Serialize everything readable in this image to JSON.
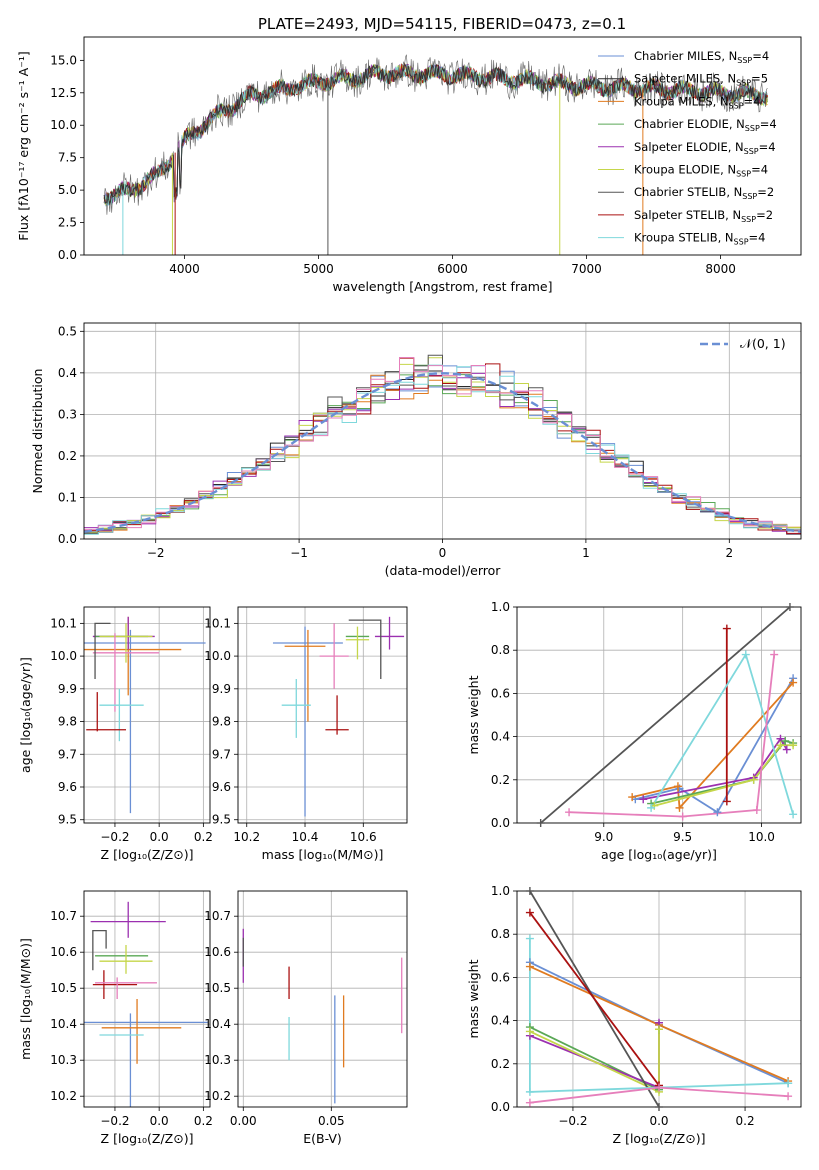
{
  "figure_title": "PLATE=2493, MJD=54115, FIBERID=0473, z=0.1",
  "colors": {
    "chabrier_miles": "#6a8fd4",
    "salpeter_miles": "#2a2a2a",
    "kroupa_miles": "#e07b20",
    "chabrier_elodie": "#5aa856",
    "salpeter_elodie": "#9b30b0",
    "kroupa_elodie": "#c5d64a",
    "chabrier_stelib": "#555555",
    "salpeter_stelib": "#aa1111",
    "kroupa_stelib": "#7fd8dc",
    "normal_curve": "#6a8fd4",
    "pink": "#e67fbb",
    "grid": "#b0b0b0"
  },
  "chart_data": [
    {
      "type": "line",
      "name": "spectrum",
      "xlabel": "wavelength [Angstrom, rest frame]",
      "ylabel": "Flux [f",
      "ylabel_full": "Flux [fλ10⁻¹⁷ erg cm⁻² s⁻¹ A⁻¹]",
      "xlim": [
        3250,
        8600
      ],
      "ylim": [
        0,
        16.8
      ],
      "xticks": [
        "4000",
        "5000",
        "6000",
        "7000",
        "8000"
      ],
      "yticks": [
        "0.0",
        "2.5",
        "5.0",
        "7.5",
        "10.0",
        "12.5",
        "15.0"
      ],
      "x_range": [
        3400,
        8350
      ],
      "continuum_anchors": [
        [
          3400,
          4.5
        ],
        [
          3600,
          5.0
        ],
        [
          3800,
          6.2
        ],
        [
          4000,
          8.8
        ],
        [
          4200,
          10.5
        ],
        [
          4500,
          12.3
        ],
        [
          5000,
          13.3
        ],
        [
          5500,
          14.0
        ],
        [
          6000,
          13.9
        ],
        [
          6500,
          13.5
        ],
        [
          7000,
          13.0
        ],
        [
          7500,
          12.8
        ],
        [
          8000,
          12.5
        ],
        [
          8350,
          12.3
        ]
      ],
      "legend": [
        "Chabrier MILES, N_SSP=4",
        "Salpeter MILES, N_SSP=5",
        "Kroupa MILES, N_SSP=4",
        "Chabrier ELODIE, N_SSP=4",
        "Salpeter ELODIE, N_SSP=4",
        "Kroupa ELODIE, N_SSP=4",
        "Chabrier STELIB, N_SSP=2",
        "Salpeter STELIB, N_SSP=2",
        "Kroupa STELIB, N_SSP=4"
      ],
      "legend_placement": "right"
    },
    {
      "type": "line",
      "name": "residual-distribution",
      "xlabel": "(data-model)/error",
      "ylabel": "Normed distribution",
      "xlim": [
        -2.5,
        2.5
      ],
      "ylim": [
        0,
        0.52
      ],
      "xticks": [
        "−2",
        "−1",
        "0",
        "1",
        "2"
      ],
      "yticks": [
        "0.0",
        "0.1",
        "0.2",
        "0.3",
        "0.4",
        "0.5"
      ],
      "legend": [
        "𝒩(0, 1)"
      ],
      "legend_placement": "top-right",
      "grid": true
    },
    {
      "type": "scatter",
      "name": "age-vs-Z",
      "xlabel": "Z [log₁₀(Z/Z⊙)]",
      "ylabel": "age  [log₁₀(age/yr)]",
      "xlim": [
        -0.34,
        0.23
      ],
      "ylim": [
        9.49,
        10.15
      ],
      "xticks": [
        "−0.2",
        "0.0",
        "0.2"
      ],
      "yticks": [
        "9.5",
        "9.6",
        "9.7",
        "9.8",
        "9.9",
        "10.0",
        "10.1"
      ]
    },
    {
      "type": "scatter",
      "name": "age-vs-mass",
      "xlabel": "mass [log₁₀(M/M⊙)]",
      "xlim": [
        10.17,
        10.75
      ],
      "ylim": [
        9.49,
        10.15
      ],
      "xticks": [
        "10.2",
        "10.4",
        "10.6"
      ],
      "yticks": [
        "9.5",
        "9.6",
        "9.7",
        "9.8",
        "9.9",
        "10.0",
        "10.1"
      ]
    },
    {
      "type": "line",
      "name": "mass-weight-vs-age",
      "xlabel": "age  [log₁₀(age/yr)]",
      "ylabel": "mass weight",
      "xlim": [
        8.45,
        10.25
      ],
      "ylim": [
        0,
        1
      ],
      "xticks": [
        "9.0",
        "9.5",
        "10.0"
      ],
      "yticks": [
        "0.0",
        "0.2",
        "0.4",
        "0.6",
        "0.8",
        "1.0"
      ],
      "series": [
        {
          "color": "chabrier_miles",
          "points": [
            [
              9.2,
              0.11
            ],
            [
              9.48,
              0.16
            ],
            [
              9.72,
              0.05
            ],
            [
              10.2,
              0.67
            ]
          ]
        },
        {
          "color": "kroupa_miles",
          "points": [
            [
              9.18,
              0.12
            ],
            [
              9.47,
              0.17
            ],
            [
              9.48,
              0.07
            ],
            [
              10.2,
              0.65
            ]
          ]
        },
        {
          "color": "chabrier_elodie",
          "points": [
            [
              9.3,
              0.09
            ],
            [
              9.95,
              0.2
            ],
            [
              10.15,
              0.38
            ],
            [
              10.2,
              0.37
            ]
          ]
        },
        {
          "color": "salpeter_elodie",
          "points": [
            [
              9.25,
              0.11
            ],
            [
              9.95,
              0.21
            ],
            [
              10.12,
              0.39
            ],
            [
              10.16,
              0.34
            ]
          ]
        },
        {
          "color": "kroupa_elodie",
          "points": [
            [
              9.32,
              0.08
            ],
            [
              9.95,
              0.2
            ],
            [
              10.12,
              0.36
            ],
            [
              10.2,
              0.36
            ]
          ]
        },
        {
          "color": "chabrier_stelib",
          "points": [
            [
              8.6,
              0.0
            ],
            [
              10.18,
              1.0
            ]
          ]
        },
        {
          "color": "salpeter_stelib",
          "points": [
            [
              9.78,
              0.9
            ],
            [
              9.78,
              0.1
            ]
          ]
        },
        {
          "color": "kroupa_stelib",
          "points": [
            [
              9.3,
              0.07
            ],
            [
              9.9,
              0.78
            ],
            [
              10.2,
              0.04
            ]
          ]
        },
        {
          "color": "pink",
          "points": [
            [
              8.78,
              0.05
            ],
            [
              9.5,
              0.03
            ],
            [
              9.97,
              0.06
            ],
            [
              10.08,
              0.78
            ]
          ]
        }
      ]
    },
    {
      "type": "scatter",
      "name": "mass-vs-Z",
      "xlabel": "Z [log₁₀(Z/Z⊙)]",
      "ylabel": "mass [log₁₀(M/M⊙)]",
      "xlim": [
        -0.34,
        0.23
      ],
      "ylim": [
        10.17,
        10.77
      ],
      "xticks": [
        "−0.2",
        "0.0",
        "0.2"
      ],
      "yticks": [
        "10.2",
        "10.3",
        "10.4",
        "10.5",
        "10.6",
        "10.7"
      ]
    },
    {
      "type": "scatter",
      "name": "mass-vs-ebv",
      "xlabel": "E(B-V)",
      "xlim": [
        -0.003,
        0.093
      ],
      "ylim": [
        10.17,
        10.77
      ],
      "xticks": [
        "0.00",
        "0.05"
      ],
      "yticks": [
        "10.2",
        "10.3",
        "10.4",
        "10.5",
        "10.6",
        "10.7"
      ]
    },
    {
      "type": "line",
      "name": "mass-weight-vs-Z",
      "xlabel": "Z [log₁₀(Z/Z⊙)]",
      "ylabel": "mass weight",
      "xlim": [
        -0.33,
        0.33
      ],
      "ylim": [
        0,
        1
      ],
      "xticks": [
        "−0.2",
        "0.0",
        "0.2"
      ],
      "yticks": [
        "0.0",
        "0.2",
        "0.4",
        "0.6",
        "0.8",
        "1.0"
      ],
      "series": [
        {
          "color": "chabrier_miles",
          "points": [
            [
              -0.3,
              0.67
            ],
            [
              0.0,
              0.38
            ],
            [
              0.3,
              0.11
            ]
          ]
        },
        {
          "color": "kroupa_miles",
          "points": [
            [
              -0.3,
              0.65
            ],
            [
              0.0,
              0.38
            ],
            [
              0.3,
              0.12
            ]
          ]
        },
        {
          "color": "chabrier_elodie",
          "points": [
            [
              -0.3,
              0.37
            ],
            [
              0.0,
              0.08
            ],
            [
              0.0,
              0.36
            ]
          ]
        },
        {
          "color": "salpeter_elodie",
          "points": [
            [
              -0.3,
              0.33
            ],
            [
              0.0,
              0.09
            ],
            [
              0.0,
              0.39
            ]
          ]
        },
        {
          "color": "kroupa_elodie",
          "points": [
            [
              -0.3,
              0.35
            ],
            [
              0.0,
              0.07
            ],
            [
              0.0,
              0.36
            ]
          ]
        },
        {
          "color": "chabrier_stelib",
          "points": [
            [
              -0.3,
              1.0
            ],
            [
              0.0,
              0.0
            ]
          ]
        },
        {
          "color": "salpeter_stelib",
          "points": [
            [
              -0.3,
              0.9
            ],
            [
              0.0,
              0.1
            ]
          ]
        },
        {
          "color": "kroupa_stelib",
          "points": [
            [
              -0.3,
              0.78
            ],
            [
              -0.3,
              0.07
            ],
            [
              0.3,
              0.11
            ]
          ]
        },
        {
          "color": "pink",
          "points": [
            [
              -0.3,
              0.02
            ],
            [
              0.0,
              0.09
            ],
            [
              0.3,
              0.05
            ]
          ]
        }
      ]
    }
  ]
}
